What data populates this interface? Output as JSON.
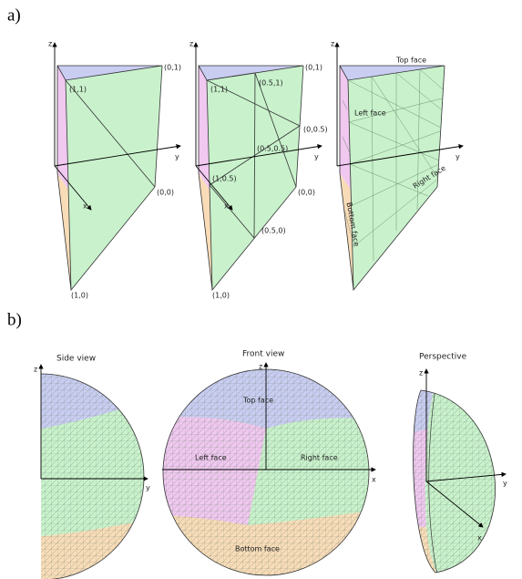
{
  "panel_a": {
    "label": "a)",
    "prisms": [
      {
        "axes": {
          "z": "z",
          "y": "y",
          "x": "x"
        },
        "points": [
          "(0,1)",
          "(1,1)",
          "(0,0)",
          "(1,0)"
        ]
      },
      {
        "axes": {
          "z": "z",
          "y": "y",
          "x": "x"
        },
        "points": [
          "(0,1)",
          "(0.5,1)",
          "(1,1)",
          "(0,0.5)",
          "(0.5,0.5)",
          "(1,0.5)",
          "(0,0)",
          "(0.5,0)",
          "(1,0)"
        ]
      },
      {
        "axes": {
          "z": "z",
          "y": "y"
        },
        "faces": [
          "Top face",
          "Left face",
          "Right face",
          "Bottom face"
        ]
      }
    ]
  },
  "panel_b": {
    "label": "b)",
    "views": [
      {
        "title": "Side view",
        "axes": {
          "z": "z",
          "y": "y"
        }
      },
      {
        "title": "Front view",
        "axes": {
          "z": "z",
          "x": "x"
        },
        "faces": [
          "Top face",
          "Left face",
          "Right face",
          "Bottom face"
        ]
      },
      {
        "title": "Perspective",
        "axes": {
          "z": "z",
          "y": "y",
          "x": "x"
        }
      }
    ]
  }
}
